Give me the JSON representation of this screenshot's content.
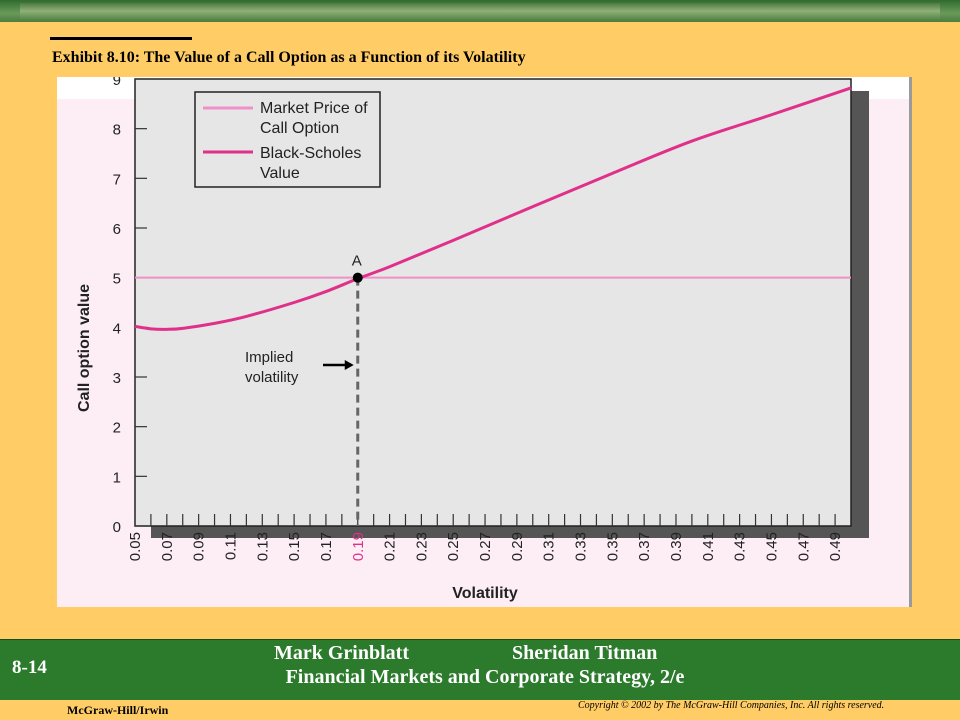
{
  "slide": {
    "title": "Exhibit 8.10: The Value of a Call Option as a Function of its Volatility",
    "slide_number": "8-14",
    "author_1": "Mark Grinblatt",
    "author_2": "Sheridan Titman",
    "book_title": "Financial Markets and Corporate Strategy, 2/e",
    "publisher": "McGraw-Hill/Irwin",
    "copyright": "Copyright © 2002 by The McGraw-Hill Companies, Inc.  All rights reserved."
  },
  "colors": {
    "market_line": "#f090c8",
    "bs_line": "#e0308a",
    "highlight_tick": "#e0308a",
    "plot_bg": "#e6e6e6",
    "figure_bg": "#fdeef5"
  },
  "chart_data": {
    "type": "line",
    "xlabel": "Volatility",
    "ylabel": "Call option value",
    "xlim": [
      0.05,
      0.5
    ],
    "ylim": [
      0,
      9
    ],
    "x_ticks": [
      "0.05",
      "0.07",
      "0.09",
      "0.11",
      "0.13",
      "0.15",
      "0.17",
      "0.19",
      "0.21",
      "0.23",
      "0.25",
      "0.27",
      "0.29",
      "0.31",
      "0.33",
      "0.35",
      "0.37",
      "0.39",
      "0.41",
      "0.43",
      "0.45",
      "0.47",
      "0.49"
    ],
    "highlight_x_tick": "0.19",
    "y_ticks": [
      "0",
      "1",
      "2",
      "3",
      "4",
      "5",
      "6",
      "7",
      "8",
      "9"
    ],
    "legend": {
      "placement": "top-left",
      "entries": [
        "Market Price of Call Option",
        "Black-Scholes Value"
      ]
    },
    "series": [
      {
        "name": "Market Price of Call Option",
        "x": [
          0.05,
          0.5
        ],
        "y": [
          5.0,
          5.0
        ]
      },
      {
        "name": "Black-Scholes Value",
        "x": [
          0.05,
          0.06,
          0.07,
          0.08,
          0.1,
          0.12,
          0.15,
          0.17,
          0.19,
          0.21,
          0.25,
          0.3,
          0.35,
          0.4,
          0.45,
          0.5
        ],
        "y": [
          4.02,
          3.97,
          3.96,
          3.98,
          4.08,
          4.22,
          4.5,
          4.72,
          4.98,
          5.22,
          5.75,
          6.43,
          7.1,
          7.75,
          8.28,
          8.82
        ]
      }
    ],
    "point": {
      "label": "A",
      "x": 0.19,
      "y": 5.0
    },
    "annotation": {
      "line1": "Implied",
      "line2": "volatility",
      "x": 0.19
    }
  }
}
